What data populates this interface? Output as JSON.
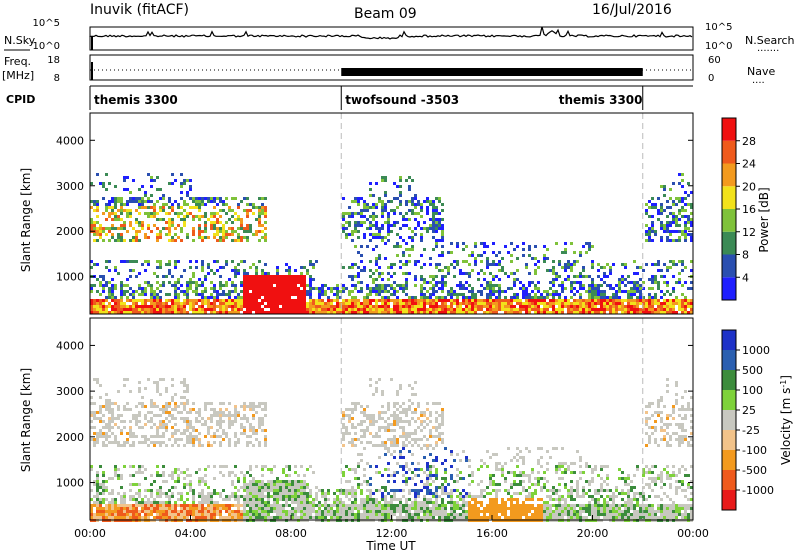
{
  "header": {
    "station": "Inuvik (fitACF)",
    "beam": "Beam 09",
    "date": "16/Jul/2016"
  },
  "chart_data": [
    {
      "type": "line",
      "name": "noise-panel",
      "left_label": "N.Sky",
      "right_label": "N.Search",
      "right_dots": ".......",
      "left_ticks": [
        "10^5",
        "10^0"
      ],
      "right_ticks": [
        "10^5",
        "10^0"
      ],
      "description_level": "roughly flat trace with occasional spikes"
    },
    {
      "type": "line",
      "name": "freq-panel",
      "left_label_top": "Freq.",
      "left_label_unit": "[MHz]",
      "left_ticks": [
        "18",
        "8"
      ],
      "right_label": "Nave",
      "right_dots": "....",
      "right_ticks": [
        "60",
        "0"
      ]
    },
    {
      "type": "table",
      "name": "cpid-panel",
      "label": "CPID",
      "modes": [
        {
          "label": "themis 3300",
          "start_hour": 0,
          "end_hour": 10
        },
        {
          "label": "twofsound -3503",
          "start_hour": 10,
          "end_hour": 22
        },
        {
          "label": "themis 3300",
          "start_hour": 22,
          "end_hour": 24
        }
      ]
    },
    {
      "type": "heatmap",
      "name": "power-panel",
      "ylabel": "Slant Range [km]",
      "yticks": [
        1000,
        2000,
        3000,
        4000
      ],
      "ylim": [
        180,
        4600
      ],
      "xlim": [
        0,
        24
      ],
      "colorbar_label": "Power [dB]",
      "colorbar_ticks": [
        "4",
        "8",
        "12",
        "16",
        "20",
        "24",
        "28"
      ],
      "colorbar_colors": [
        "#1f1fff",
        "#2a4fb0",
        "#3b8a55",
        "#7fc23a",
        "#f2e21b",
        "#f39a1e",
        "#ef5a1c",
        "#f01010"
      ]
    },
    {
      "type": "heatmap",
      "name": "velocity-panel",
      "ylabel": "Slant Range [km]",
      "yticks": [
        1000,
        2000,
        3000,
        4000
      ],
      "ylim": [
        180,
        4600
      ],
      "xlim": [
        0,
        24
      ],
      "xticks": [
        "00:00",
        "04:00",
        "08:00",
        "12:00",
        "16:00",
        "20:00",
        "00:00"
      ],
      "xlabel": "Time UT",
      "colorbar_label": "Velocity [m s",
      "colorbar_label_sup": "-1",
      "colorbar_label_end": "]",
      "colorbar_ticks": [
        "1000",
        "500",
        "100",
        "25",
        "-25",
        "-100",
        "-500",
        "-1000"
      ],
      "colorbar_colors": [
        "#1e32c8",
        "#2a5fb0",
        "#3c8c3c",
        "#7ed23a",
        "#c8c8c0",
        "#f2c38a",
        "#f39a1e",
        "#ef5a1c",
        "#e81a1a"
      ]
    }
  ]
}
